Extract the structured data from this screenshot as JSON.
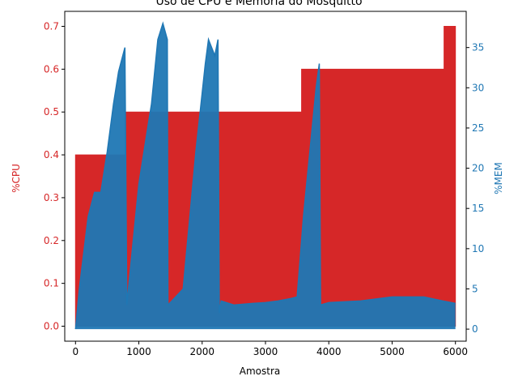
{
  "chart_data": {
    "type": "line",
    "title": "Uso de CPU e Memória do Mosquitto",
    "xlabel": "Amostra",
    "ylabel_left": "%CPU",
    "ylabel_right": "%MEM",
    "xlim": [
      -170,
      6170
    ],
    "ylim_left": [
      -0.035,
      0.735
    ],
    "ylim_right": [
      -1.5,
      39.5
    ],
    "x_ticks": [
      "0",
      "1000",
      "2000",
      "3000",
      "4000",
      "5000",
      "6000"
    ],
    "y_left_ticks": [
      "0.0",
      "0.1",
      "0.2",
      "0.3",
      "0.4",
      "0.5",
      "0.6",
      "0.7"
    ],
    "y_right_ticks": [
      "0",
      "5",
      "10",
      "15",
      "20",
      "25",
      "30",
      "35"
    ],
    "colors": {
      "cpu": "#d62728",
      "mem": "#1f77b4"
    },
    "series": [
      {
        "name": "%CPU",
        "axis": "left",
        "x": [
          0,
          800,
          800,
          3570,
          3570,
          5820,
          5820,
          6000
        ],
        "values": [
          0.4,
          0.4,
          0.5,
          0.5,
          0.6,
          0.6,
          0.7,
          0.7
        ]
      },
      {
        "name": "%MEM",
        "axis": "right",
        "x": [
          0,
          60,
          200,
          300,
          400,
          500,
          600,
          680,
          780,
          810,
          1000,
          1200,
          1300,
          1380,
          1450,
          1460,
          1700,
          1900,
          2050,
          2100,
          2200,
          2250,
          2270,
          2300,
          2500,
          2800,
          3000,
          3200,
          3400,
          3500,
          3600,
          3700,
          3800,
          3850,
          3870,
          4000,
          4500,
          5000,
          5500,
          5800,
          6000
        ],
        "values": [
          0,
          5,
          14,
          17,
          17,
          22,
          28,
          32,
          35,
          3,
          18,
          28,
          36,
          38,
          36,
          3,
          5,
          22,
          33,
          36,
          34,
          36,
          2,
          3.5,
          3,
          3.2,
          3.3,
          3.5,
          3.8,
          4,
          14,
          22,
          30,
          33,
          3,
          3.3,
          3.5,
          4,
          4,
          3.5,
          3.2
        ]
      }
    ]
  }
}
